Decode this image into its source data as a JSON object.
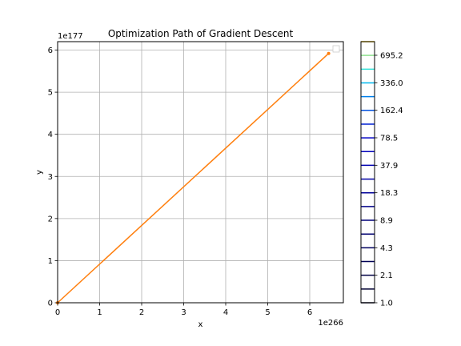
{
  "chart_data": {
    "type": "line",
    "title": "Optimization Path of Gradient Descent",
    "xlabel": "x",
    "ylabel": "y",
    "x_offset_label": "1e266",
    "y_offset_label": "1e177",
    "xlim": [
      0,
      6.8
    ],
    "ylim": [
      0,
      6.2
    ],
    "x_ticks": [
      0,
      1,
      2,
      3,
      4,
      5,
      6
    ],
    "y_ticks": [
      0,
      1,
      2,
      3,
      4,
      5,
      6
    ],
    "grid": true,
    "legend_placement": "top-right",
    "series": [
      {
        "color": "#ff7f0e",
        "marker": "dot",
        "x": [
          0,
          6.45
        ],
        "y": [
          0,
          5.92
        ]
      }
    ],
    "colorbar": {
      "tick_labels": [
        "1.0",
        "2.1",
        "4.3",
        "8.9",
        "18.3",
        "37.9",
        "78.5",
        "162.4",
        "336.0",
        "695.2"
      ],
      "level_colors": [
        "#000022",
        "#000033",
        "#000044",
        "#000055",
        "#00005f",
        "#000070",
        "#00007a",
        "#000088",
        "#000099",
        "#0000a6",
        "#0000b0",
        "#0000bb",
        "#0000c6",
        "#0020d4",
        "#0050e0",
        "#0080ec",
        "#00b8f0",
        "#30e0d8",
        "#90e090",
        "#f0c000"
      ]
    }
  }
}
